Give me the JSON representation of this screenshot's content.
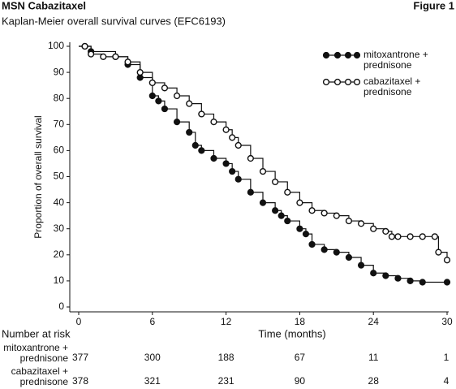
{
  "chart_data": {
    "type": "line",
    "title": "MSN Cabazitaxel",
    "figure_label": "Figure 1",
    "subtitle": "Kaplan-Meier overall survival curves (EFC6193)",
    "x_label": "Time (months)",
    "y_label": "Proportion of overall survival",
    "xlim": [
      0,
      30
    ],
    "xticks": [
      0,
      6,
      12,
      18,
      24,
      30
    ],
    "ylim": [
      0,
      100
    ],
    "yticks": [
      0,
      10,
      20,
      30,
      40,
      50,
      60,
      70,
      80,
      90,
      100
    ],
    "legend": "top-right",
    "series": [
      {
        "name": "mitoxantrone + prednisone",
        "color": "#111111",
        "marker": "filled",
        "x": [
          0,
          0.5,
          1,
          3,
          4,
          5,
          6,
          6.5,
          7,
          8,
          9,
          9.5,
          10,
          11,
          12,
          12.5,
          13,
          14,
          15,
          16,
          16.5,
          17,
          18,
          18.5,
          19,
          20,
          21,
          22,
          23,
          24,
          25,
          26,
          27,
          28,
          30
        ],
        "values": [
          100,
          100,
          98,
          96,
          93,
          88,
          81,
          79,
          76,
          71,
          67,
          62,
          60,
          57,
          55,
          52,
          49,
          44,
          40,
          37,
          35,
          33,
          30,
          28,
          24,
          22,
          21,
          19,
          16,
          13,
          12,
          11,
          10,
          9.5,
          9.5
        ]
      },
      {
        "name": "cabazitaxel + prednisone",
        "color": "#111111",
        "marker": "open",
        "x": [
          0,
          0.5,
          1,
          2,
          3,
          4,
          5,
          6,
          7,
          8,
          9,
          10,
          11,
          12,
          12.5,
          13,
          14,
          15,
          16,
          17,
          18,
          19,
          20,
          21,
          22,
          23,
          24,
          25,
          25.5,
          26,
          27,
          28,
          29,
          29.3,
          30
        ],
        "values": [
          100,
          100,
          97,
          96,
          96,
          94,
          90,
          86,
          84,
          81,
          78,
          74,
          71,
          68,
          65,
          62,
          57,
          52,
          48,
          44,
          40,
          37,
          36,
          35,
          33,
          32,
          30,
          29,
          27,
          27,
          27,
          27,
          27,
          21,
          18
        ]
      }
    ]
  },
  "number_at_risk": {
    "title": "Number at risk",
    "rows": [
      {
        "label": "mitoxantrone + prednisone",
        "values": [
          377,
          300,
          188,
          67,
          11,
          1
        ]
      },
      {
        "label": "cabazitaxel + prednisone",
        "values": [
          378,
          321,
          231,
          90,
          28,
          4
        ]
      }
    ]
  }
}
